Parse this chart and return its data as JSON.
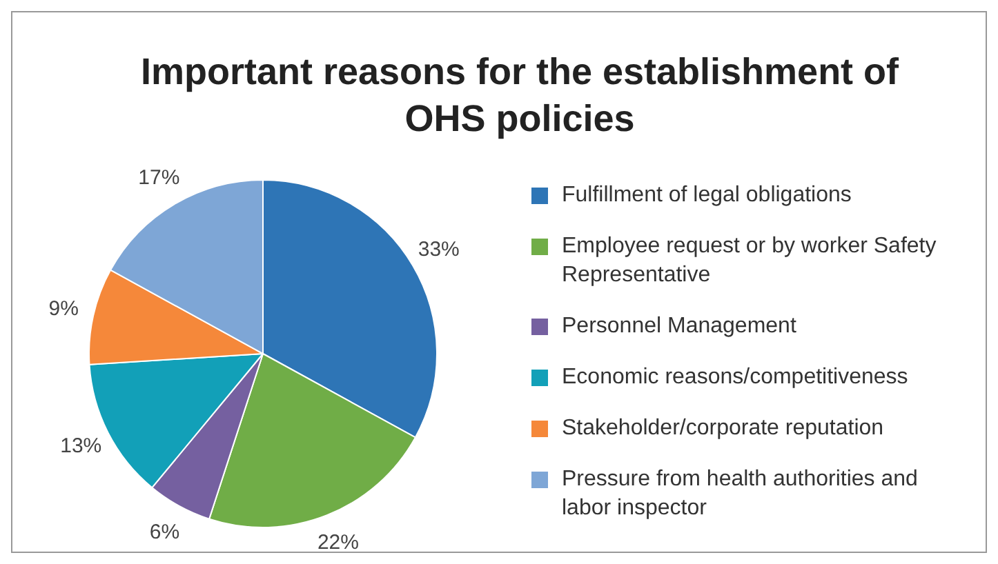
{
  "chart_data": {
    "type": "pie",
    "title": "Important reasons for the establishment of OHS policies",
    "categories": [
      "Fulfillment of legal obligations",
      "Employee request or by worker Safety Representative",
      "Personnel Management",
      "Economic reasons/competitiveness",
      "Stakeholder/corporate reputation",
      "Pressure from health authorities and labor inspector"
    ],
    "values": [
      33,
      22,
      6,
      13,
      9,
      17
    ],
    "colors": [
      "#2e75b6",
      "#70ad47",
      "#7560a0",
      "#12a0b8",
      "#f5883a",
      "#7ea6d6"
    ],
    "value_labels": [
      "33%",
      "22%",
      "6%",
      "13%",
      "9%",
      "17%"
    ],
    "legend": "right"
  }
}
